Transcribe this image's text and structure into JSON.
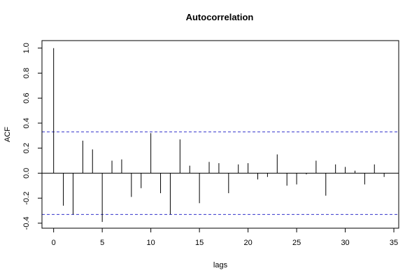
{
  "chart_data": {
    "type": "bar",
    "title": "Autocorrelation",
    "xlabel": "lags",
    "ylabel": "ACF",
    "xlim": [
      -1.2,
      35.5
    ],
    "ylim": [
      -0.44,
      1.06
    ],
    "xticks": [
      0,
      5,
      10,
      15,
      20,
      25,
      30,
      35
    ],
    "yticks": [
      -0.4,
      -0.2,
      0.0,
      0.2,
      0.4,
      0.6,
      0.8,
      1.0
    ],
    "ytick_labels": [
      "-0.4",
      "-0.2",
      "0.0",
      "0.2",
      "0.4",
      "0.6",
      "0.8",
      "1.0"
    ],
    "confidence_bounds": [
      0.33,
      -0.33
    ],
    "confidence_color": "#3333cc",
    "bar_color": "#000000",
    "zero_line": true,
    "grid": false,
    "x": [
      0,
      1,
      2,
      3,
      4,
      5,
      6,
      7,
      8,
      9,
      10,
      11,
      12,
      13,
      14,
      15,
      16,
      17,
      18,
      19,
      20,
      21,
      22,
      23,
      24,
      25,
      26,
      27,
      28,
      29,
      30,
      31,
      32,
      33,
      34
    ],
    "values": [
      1.0,
      -0.26,
      -0.33,
      0.26,
      0.19,
      -0.39,
      0.1,
      0.11,
      -0.19,
      -0.12,
      0.32,
      -0.16,
      -0.33,
      0.27,
      0.06,
      -0.24,
      0.09,
      0.08,
      -0.16,
      0.07,
      0.08,
      -0.05,
      -0.03,
      0.15,
      -0.1,
      -0.09,
      -0.01,
      0.1,
      -0.18,
      0.07,
      0.05,
      0.02,
      -0.09,
      0.07,
      -0.03
    ]
  }
}
